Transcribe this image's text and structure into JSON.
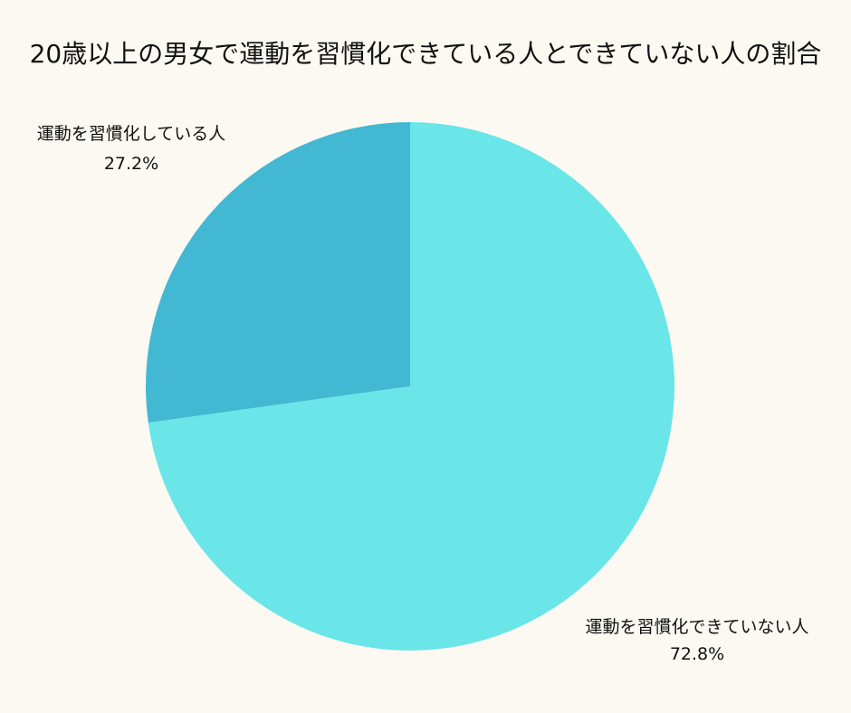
{
  "chart_data": {
    "type": "pie",
    "title": "20歳以上の男女で運動を習慣化できている人とできていない人の割合",
    "slices": [
      {
        "label": "運動を習慣化している人",
        "value": 27.2,
        "value_label": "27.2%",
        "color": "#43b8d3"
      },
      {
        "label": "運動を習慣化できていない人",
        "value": 72.8,
        "value_label": "72.8%",
        "color": "#6ae5e8"
      }
    ],
    "start_angle": "12 o'clock",
    "direction": "counter-clockwise",
    "legend": "none"
  }
}
